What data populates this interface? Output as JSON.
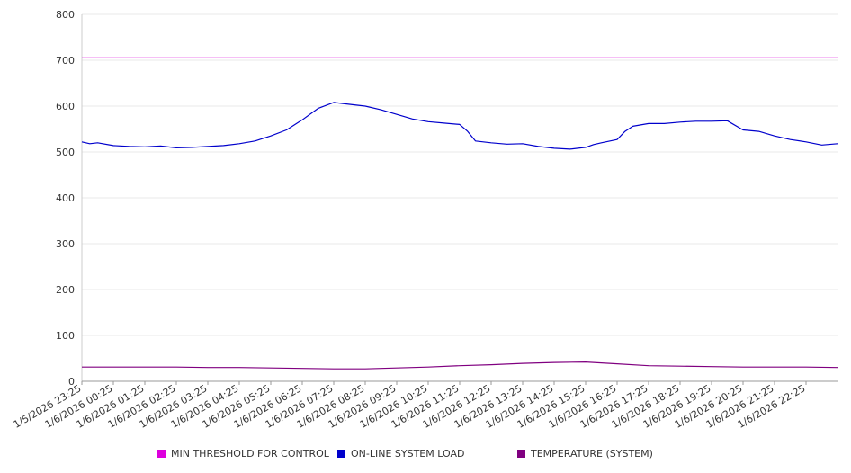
{
  "chart_data": {
    "type": "line",
    "ylim": [
      0,
      800
    ],
    "y_ticks": [
      "0",
      "100",
      "200",
      "300",
      "400",
      "500",
      "600",
      "700",
      "800"
    ],
    "x_labels": [
      "1/5/2026 23:25",
      "1/6/2026 00:25",
      "1/6/2026 01:25",
      "1/6/2026 02:25",
      "1/6/2026 03:25",
      "1/6/2026 04:25",
      "1/6/2026 05:25",
      "1/6/2026 06:25",
      "1/6/2026 07:25",
      "1/6/2026 08:25",
      "1/6/2026 09:25",
      "1/6/2026 10:25",
      "1/6/2026 11:25",
      "1/6/2026 12:25",
      "1/6/2026 13:25",
      "1/6/2026 14:25",
      "1/6/2026 15:25",
      "1/6/2026 16:25",
      "1/6/2026 17:25",
      "1/6/2026 18:25",
      "1/6/2026 19:25",
      "1/6/2026 20:25",
      "1/6/2026 21:25",
      "1/6/2026 22:25"
    ],
    "grid": true,
    "legend_position": "bottom",
    "series": [
      {
        "name": "MIN THRESHOLD FOR CONTROL",
        "color": "#dd00dd",
        "x": [
          0,
          24
        ],
        "values": [
          705,
          705
        ]
      },
      {
        "name": "ON-LINE SYSTEM LOAD",
        "color": "#0000cc",
        "x": [
          0,
          0.25,
          0.5,
          1,
          1.5,
          2,
          2.5,
          3,
          3.5,
          4,
          4.5,
          5,
          5.5,
          6,
          6.5,
          7,
          7.5,
          8,
          8.5,
          9,
          9.5,
          10,
          10.5,
          11,
          11.5,
          12,
          12.25,
          12.5,
          13,
          13.5,
          14,
          14.5,
          15,
          15.5,
          16,
          16.25,
          16.5,
          17,
          17.25,
          17.5,
          18,
          18.5,
          19,
          19.5,
          20,
          20.5,
          21,
          21.5,
          22,
          22.5,
          23,
          23.5,
          24
        ],
        "values": [
          522,
          518,
          520,
          514,
          512,
          511,
          513,
          509,
          510,
          512,
          514,
          518,
          524,
          535,
          548,
          570,
          595,
          608,
          604,
          600,
          592,
          582,
          572,
          566,
          563,
          560,
          545,
          524,
          520,
          517,
          518,
          512,
          508,
          506,
          510,
          516,
          520,
          527,
          545,
          556,
          562,
          562,
          565,
          567,
          567,
          568,
          548,
          545,
          535,
          527,
          522,
          515,
          518
        ]
      },
      {
        "name": "TEMPERATURE (SYSTEM)",
        "color": "#800080",
        "x": [
          0,
          1,
          2,
          3,
          4,
          5,
          6,
          7,
          8,
          9,
          10,
          11,
          12,
          13,
          14,
          15,
          16,
          17,
          18,
          19,
          20,
          21,
          22,
          23,
          24
        ],
        "values": [
          31,
          31,
          31,
          31,
          30,
          30,
          29,
          28,
          27,
          27,
          29,
          31,
          34,
          36,
          39,
          41,
          42,
          38,
          34,
          33,
          32,
          31,
          31,
          31,
          30
        ]
      }
    ]
  }
}
